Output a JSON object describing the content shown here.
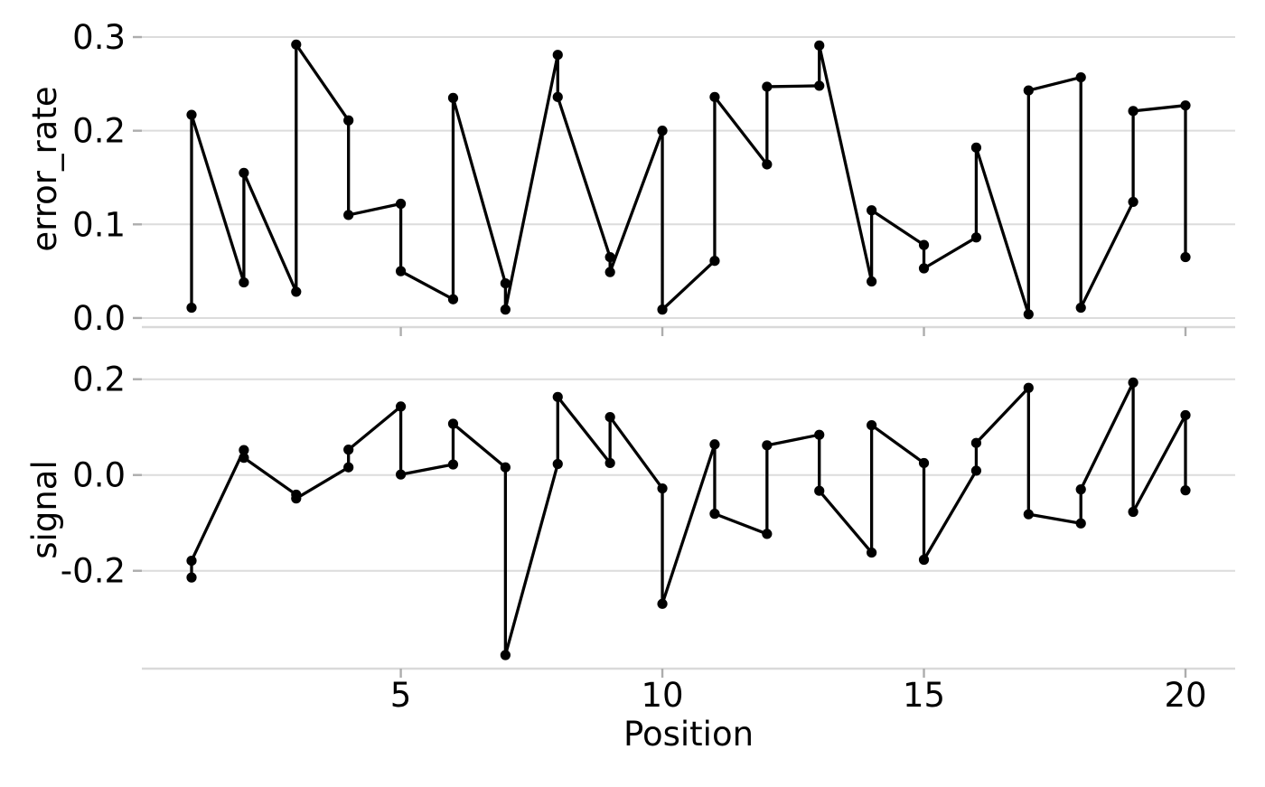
{
  "figure": {
    "background": "#ffffff"
  },
  "styles": {
    "line_color": "#000000",
    "point_color": "#000000",
    "grid_color": "#dcdcdc",
    "spine_color": "#d9d9d9",
    "tick_color": "#adadad",
    "text_color": "#000000"
  },
  "x_axis": {
    "label": "Position",
    "ticks": [
      5,
      10,
      15,
      20
    ],
    "tick_labels": [
      "5",
      "10",
      "15",
      "20"
    ],
    "xlim": [
      0.05,
      20.95
    ]
  },
  "chart_data": [
    {
      "type": "line",
      "name": "error_rate",
      "ylabel": "error_rate",
      "marker": "circle",
      "grid": true,
      "legend_position": "none",
      "yticks": [
        0.0,
        0.1,
        0.2,
        0.3
      ],
      "ytick_labels": [
        "0.0",
        "0.1",
        "0.2",
        "0.3"
      ],
      "ylim": [
        -0.0097,
        0.328
      ],
      "x": [
        1,
        1,
        2,
        2,
        3,
        3,
        4,
        4,
        5,
        5,
        6,
        6,
        7,
        7,
        8,
        8,
        9,
        9,
        10,
        10,
        11,
        11,
        12,
        12,
        13,
        13,
        14,
        14,
        15,
        15,
        16,
        16,
        17,
        17,
        18,
        18,
        19,
        19,
        20,
        20
      ],
      "y": [
        0.011,
        0.217,
        0.038,
        0.155,
        0.028,
        0.292,
        0.211,
        0.11,
        0.122,
        0.05,
        0.02,
        0.235,
        0.037,
        0.009,
        0.281,
        0.236,
        0.065,
        0.049,
        0.2,
        0.009,
        0.061,
        0.236,
        0.164,
        0.247,
        0.248,
        0.291,
        0.039,
        0.115,
        0.078,
        0.053,
        0.086,
        0.182,
        0.004,
        0.243,
        0.257,
        0.011,
        0.124,
        0.221,
        0.227,
        0.065
      ]
    },
    {
      "type": "line",
      "name": "signal",
      "ylabel": "signal",
      "marker": "circle",
      "grid": true,
      "legend_position": "none",
      "yticks": [
        0.2,
        0.0,
        -0.2
      ],
      "ytick_labels": [
        "0.2",
        "0.0",
        "-0.2"
      ],
      "ylim": [
        -0.4043,
        0.2598
      ],
      "x": [
        1,
        1,
        2,
        2,
        3,
        3,
        4,
        4,
        5,
        5,
        6,
        6,
        7,
        7,
        8,
        8,
        9,
        9,
        10,
        10,
        11,
        11,
        12,
        12,
        13,
        13,
        14,
        14,
        15,
        15,
        16,
        16,
        17,
        17,
        18,
        18,
        19,
        19,
        20,
        20
      ],
      "y": [
        -0.214,
        -0.179,
        0.052,
        0.036,
        -0.041,
        -0.049,
        0.016,
        0.053,
        0.143,
        0.001,
        0.022,
        0.107,
        0.016,
        -0.376,
        0.023,
        0.163,
        0.025,
        0.121,
        -0.028,
        -0.269,
        0.064,
        -0.081,
        -0.123,
        0.062,
        0.084,
        -0.033,
        -0.162,
        0.104,
        0.025,
        -0.177,
        0.009,
        0.067,
        0.182,
        -0.082,
        -0.101,
        -0.03,
        0.193,
        -0.077,
        0.125,
        -0.032
      ]
    }
  ]
}
